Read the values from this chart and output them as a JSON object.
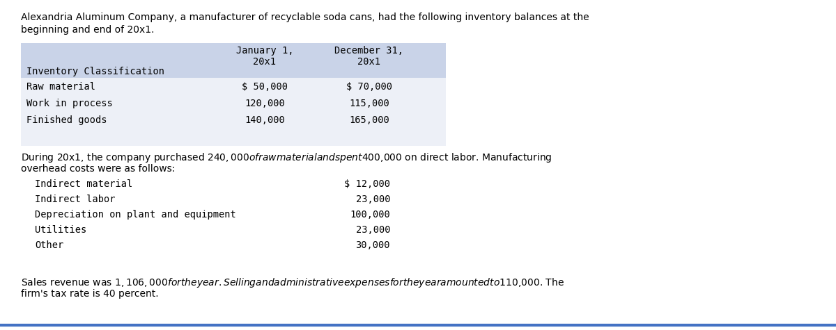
{
  "bg_color": "#ffffff",
  "border_color": "#4472c4",
  "intro_line1": "Alexandria Aluminum Company, a manufacturer of recyclable soda cans, had the following inventory balances at the",
  "intro_line2": "beginning and end of 20x1.",
  "table_header_bg": "#c9d3e8",
  "table_body_bg": "#edf0f7",
  "table_col1_label": "Inventory Classification",
  "table_header_col2": "January 1,",
  "table_header_col2b": "20x1",
  "table_header_col3": "December 31,",
  "table_header_col3b": "20x1",
  "table_rows": [
    [
      "Raw material",
      "$ 50,000",
      "$ 70,000"
    ],
    [
      "Work in process",
      "120,000",
      "115,000"
    ],
    [
      "Finished goods",
      "140,000",
      "165,000"
    ]
  ],
  "middle_line1": "During 20x1, the company purchased $240,000 of raw material and spent $400,000 on direct labor. Manufacturing",
  "middle_line2": "overhead costs were as follows:",
  "overhead_rows": [
    [
      "Indirect material",
      "$ 12,000"
    ],
    [
      "Indirect labor",
      "23,000"
    ],
    [
      "Depreciation on plant and equipment",
      "100,000"
    ],
    [
      "Utilities",
      "23,000"
    ],
    [
      "Other",
      "30,000"
    ]
  ],
  "footer_line1": "Sales revenue was $1,106,000 for the year. Selling and administrative expenses for the year amounted to $110,000. The",
  "footer_line2": "firm's tax rate is 40 percent.",
  "font_size_body": 10.0,
  "font_size_mono": 9.8,
  "text_color": "#000000"
}
